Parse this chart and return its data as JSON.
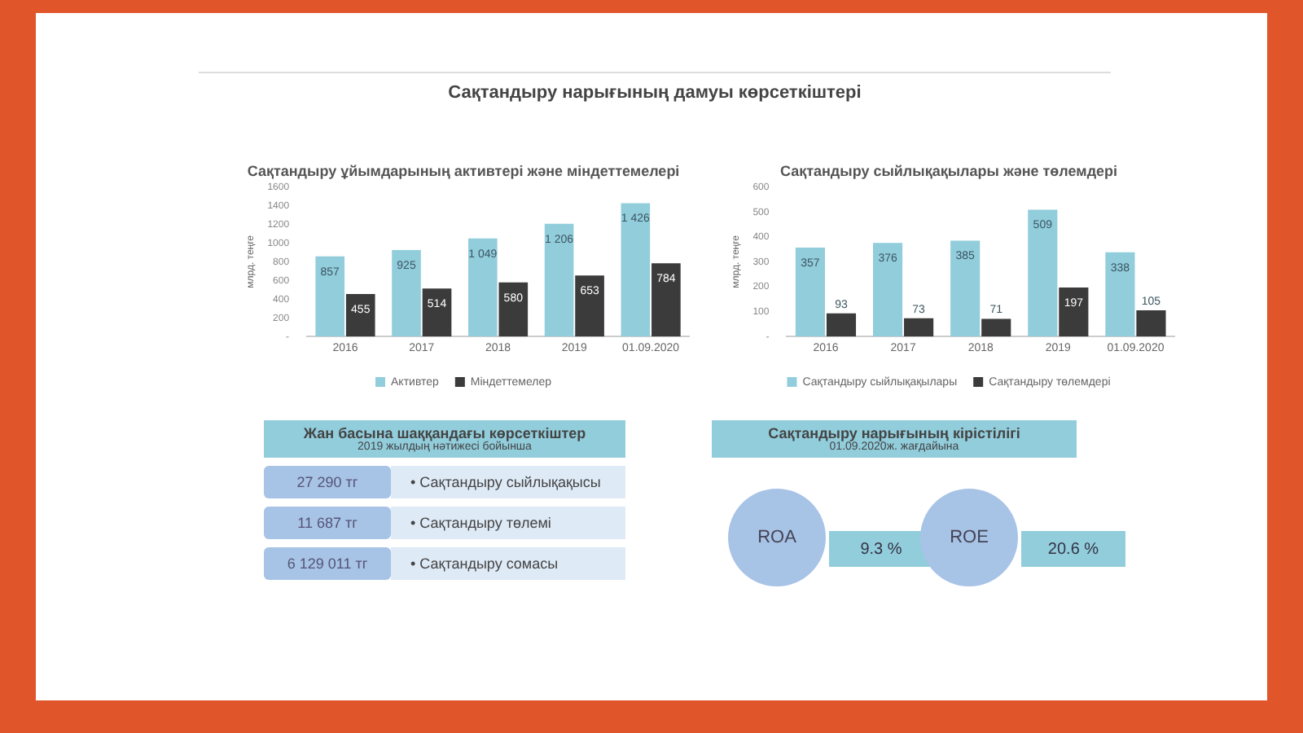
{
  "chart_data": [
    {
      "type": "other",
      "title": "Сақтандыру нарығының дамуы көрсеткіштері"
    },
    {
      "type": "bar",
      "title": "Сақтандыру ұйымдарының активтері және міндеттемелері",
      "ylabel": "млрд. теңге",
      "categories": [
        "2016",
        "2017",
        "2018",
        "2019",
        "01.09.2020"
      ],
      "series": [
        {
          "name": "Активтер",
          "color": "#92cddc",
          "values": [
            857,
            925,
            1049,
            1206,
            1426
          ],
          "value_labels": [
            "857",
            "925",
            "1 049",
            "1 206",
            "1 426"
          ]
        },
        {
          "name": "Міндеттемелер",
          "color": "#3b3b3b",
          "values": [
            455,
            514,
            580,
            653,
            784
          ],
          "value_labels": [
            "455",
            "514",
            "580",
            "653",
            "784"
          ]
        }
      ],
      "ylim": [
        0,
        1600
      ],
      "yticks": [
        {
          "value": 0,
          "label": "-"
        },
        200,
        400,
        600,
        800,
        1000,
        1200,
        1400,
        1600
      ],
      "grid": false,
      "legend": "bottom"
    },
    {
      "type": "bar",
      "title": "Сақтандыру сыйлықақылары және төлемдері",
      "ylabel": "млрд. теңге",
      "categories": [
        "2016",
        "2017",
        "2018",
        "2019",
        "01.09.2020"
      ],
      "series": [
        {
          "name": "Сақтандыру сыйлықақылары",
          "color": "#92cddc",
          "values": [
            357,
            376,
            385,
            509,
            338
          ]
        },
        {
          "name": "Сақтандыру төлемдері",
          "color": "#3b3b3b",
          "values": [
            93,
            73,
            71,
            197,
            105
          ]
        }
      ],
      "ylim": [
        0,
        600
      ],
      "yticks": [
        {
          "value": 0,
          "label": "-"
        },
        100,
        200,
        300,
        400,
        500,
        600
      ],
      "grid": false,
      "legend": "bottom",
      "data_labels": true
    },
    {
      "type": "other",
      "title": "Жан басына шаққандағы көрсеткіштер",
      "subtitle": "2019 жылдың нәтижесі бойынша",
      "categories": [
        "• Сақтандыру сыйлықақысы",
        "• Сақтандыру төлемі",
        "• Сақтандыру сомасы"
      ],
      "value_labels": [
        "27 290 тг",
        "11 687 тг",
        "6 129 011 тг"
      ]
    },
    {
      "type": "other",
      "title": "Сақтандыру нарығының кірістілігі",
      "subtitle": "01.09.2020ж. жағдайына",
      "categories": [
        "ROA",
        "ROE"
      ],
      "value_labels": [
        "9.3 %",
        "20.6 %"
      ]
    }
  ]
}
